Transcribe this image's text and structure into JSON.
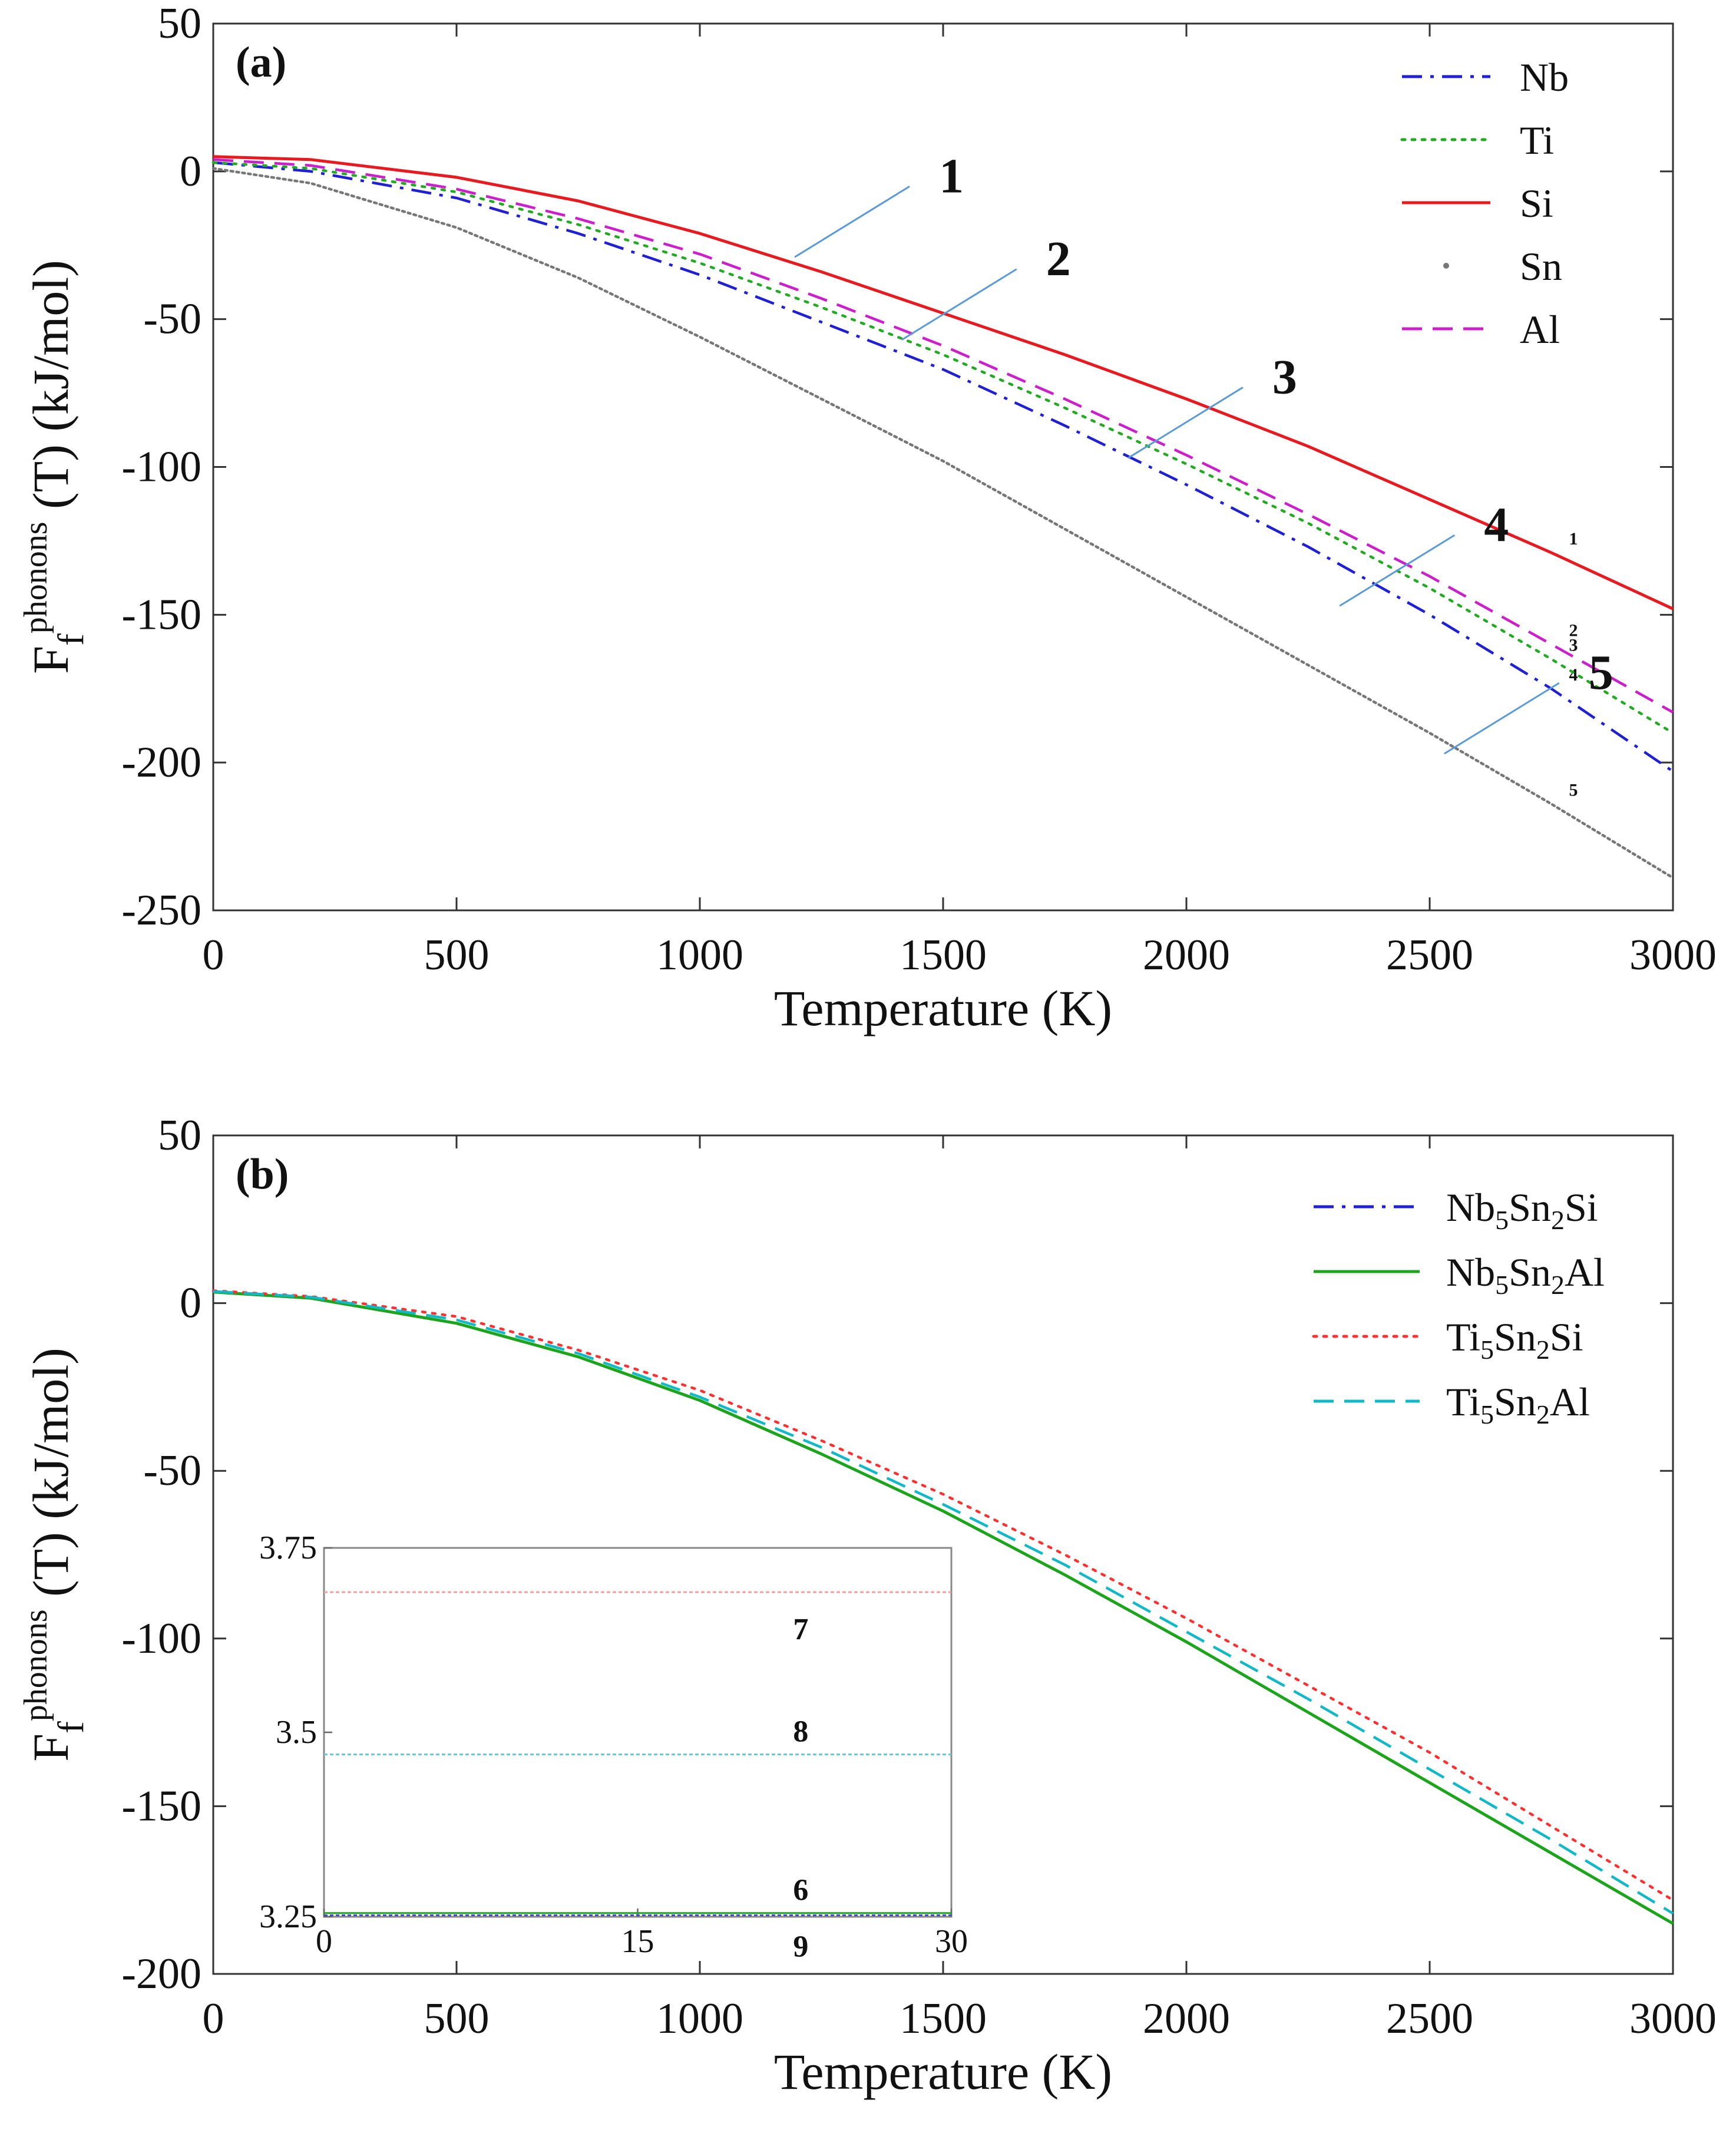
{
  "chart_data": [
    {
      "id": "a",
      "type": "line",
      "panel_label": "(a)",
      "xlabel": "Temperature (K)",
      "ylabel_main": "F",
      "ylabel_sub": "f",
      "ylabel_sup": "phonons",
      "ylabel_tail": " (T) (kJ/mol)",
      "xlim": [
        0,
        3000
      ],
      "ylim": [
        -250,
        50
      ],
      "xticks": [
        0,
        500,
        1000,
        1500,
        2000,
        2500,
        3000
      ],
      "yticks": [
        50,
        0,
        -50,
        -100,
        -150,
        -200,
        -250
      ],
      "legend_position": "top-right",
      "series": [
        {
          "name": "Nb",
          "color": "#1f1fd6",
          "style": "dashdot",
          "label_num": "4",
          "x": [
            0,
            200,
            500,
            750,
            1000,
            1250,
            1500,
            1750,
            2000,
            2250,
            2500,
            2750,
            3000
          ],
          "y": [
            3,
            0,
            -9,
            -21,
            -35,
            -51,
            -67,
            -86,
            -106,
            -127,
            -150,
            -175,
            -203
          ]
        },
        {
          "name": "Ti",
          "color": "#22aa22",
          "style": "dotted",
          "label_num": "3",
          "x": [
            0,
            200,
            500,
            750,
            1000,
            1250,
            1500,
            1750,
            2000,
            2250,
            2500,
            2750,
            3000
          ],
          "y": [
            3,
            1,
            -7,
            -18,
            -31,
            -46,
            -62,
            -80,
            -99,
            -119,
            -141,
            -165,
            -190
          ]
        },
        {
          "name": "Si",
          "color": "#e8191f",
          "style": "solid",
          "label_num": "1",
          "x": [
            0,
            200,
            500,
            750,
            1000,
            1250,
            1500,
            1750,
            2000,
            2250,
            2500,
            2750,
            3000
          ],
          "y": [
            5,
            4,
            -2,
            -10,
            -21,
            -34,
            -48,
            -62,
            -77,
            -93,
            -111,
            -129,
            -148
          ]
        },
        {
          "name": "Sn",
          "color": "#777777",
          "style": "dots",
          "label_num": "5",
          "x": [
            0,
            200,
            500,
            750,
            1000,
            1250,
            1500,
            1750,
            2000,
            2250,
            2500,
            2750,
            3000
          ],
          "y": [
            1,
            -4,
            -19,
            -36,
            -56,
            -77,
            -98,
            -121,
            -144,
            -167,
            -190,
            -214,
            -239
          ]
        },
        {
          "name": "Al",
          "color": "#cc1fcc",
          "style": "dashed",
          "label_num": "2",
          "x": [
            0,
            200,
            500,
            750,
            1000,
            1250,
            1500,
            1750,
            2000,
            2250,
            2500,
            2750,
            3000
          ],
          "y": [
            4,
            2,
            -6,
            -16,
            -28,
            -43,
            -59,
            -77,
            -96,
            -116,
            -137,
            -160,
            -183
          ]
        }
      ],
      "callouts": [
        {
          "text": "1",
          "x_data": 1195,
          "y_data": -29
        },
        {
          "text": "2",
          "x_data": 1415,
          "y_data": -57
        },
        {
          "text": "3",
          "x_data": 1880,
          "y_data": -97
        },
        {
          "text": "4",
          "x_data": 2315,
          "y_data": -147
        },
        {
          "text": "5",
          "x_data": 2530,
          "y_data": -197
        }
      ]
    },
    {
      "id": "b",
      "type": "line",
      "panel_label": "(b)",
      "xlabel": "Temperature (K)",
      "ylabel_main": "F",
      "ylabel_sub": "f",
      "ylabel_sup": "phonons",
      "ylabel_tail": " (T) (kJ/mol)",
      "xlim": [
        0,
        3000
      ],
      "ylim": [
        -200,
        50
      ],
      "xticks": [
        0,
        500,
        1000,
        1500,
        2000,
        2500,
        3000
      ],
      "yticks": [
        50,
        0,
        -50,
        -100,
        -150,
        -200
      ],
      "legend_position": "top-right",
      "series": [
        {
          "legend_parts": [
            "Nb",
            "5",
            "Sn",
            "2",
            "Si"
          ],
          "color": "#1f1fd6",
          "style": "dashdot",
          "x": [
            0,
            200,
            500,
            750,
            1000,
            1250,
            1500,
            1750,
            2000,
            2250,
            2500,
            2750,
            3000
          ],
          "y": [
            3.3,
            1.5,
            -6,
            -16,
            -29,
            -45,
            -62,
            -81,
            -101,
            -122,
            -143,
            -164,
            -185
          ]
        },
        {
          "legend_parts": [
            "Nb",
            "5",
            "Sn",
            "2",
            "Al"
          ],
          "color": "#1aa51a",
          "style": "solid",
          "x": [
            0,
            200,
            500,
            750,
            1000,
            1250,
            1500,
            1750,
            2000,
            2250,
            2500,
            2750,
            3000
          ],
          "y": [
            3.3,
            1.5,
            -6,
            -16,
            -29,
            -45,
            -62,
            -81,
            -101,
            -122,
            -143,
            -164,
            -185
          ]
        },
        {
          "legend_parts": [
            "Ti",
            "5",
            "Sn",
            "2",
            "Si"
          ],
          "color": "#ff3030",
          "style": "dotted",
          "x": [
            0,
            200,
            500,
            750,
            1000,
            1250,
            1500,
            1750,
            2000,
            2250,
            2500,
            2750,
            3000
          ],
          "y": [
            3.7,
            2,
            -4,
            -14,
            -26,
            -41,
            -57,
            -75,
            -94,
            -114,
            -134,
            -156,
            -178
          ]
        },
        {
          "legend_parts": [
            "Ti",
            "5",
            "Sn",
            "2",
            "Al"
          ],
          "color": "#11b8c8",
          "style": "dashed",
          "x": [
            0,
            200,
            500,
            750,
            1000,
            1250,
            1500,
            1750,
            2000,
            2250,
            2500,
            2750,
            3000
          ],
          "y": [
            3.5,
            1.8,
            -5,
            -15,
            -28,
            -43,
            -60,
            -78,
            -98,
            -118,
            -139,
            -160,
            -182
          ]
        }
      ],
      "inset": {
        "xlim": [
          0,
          30
        ],
        "ylim": [
          3.25,
          3.75
        ],
        "xticks": [
          0,
          15,
          30
        ],
        "yticks": [
          3.75,
          3.5,
          3.25
        ],
        "lines": [
          {
            "label": "7",
            "value": 3.69,
            "color": "#f2a0a0"
          },
          {
            "label": "8",
            "value": 3.47,
            "color": "#6fc7cf"
          },
          {
            "label": "6",
            "value": 3.255,
            "color": "#1aa51a"
          },
          {
            "label": "9",
            "value": 3.252,
            "color": "#4a4ac8"
          }
        ]
      }
    }
  ]
}
